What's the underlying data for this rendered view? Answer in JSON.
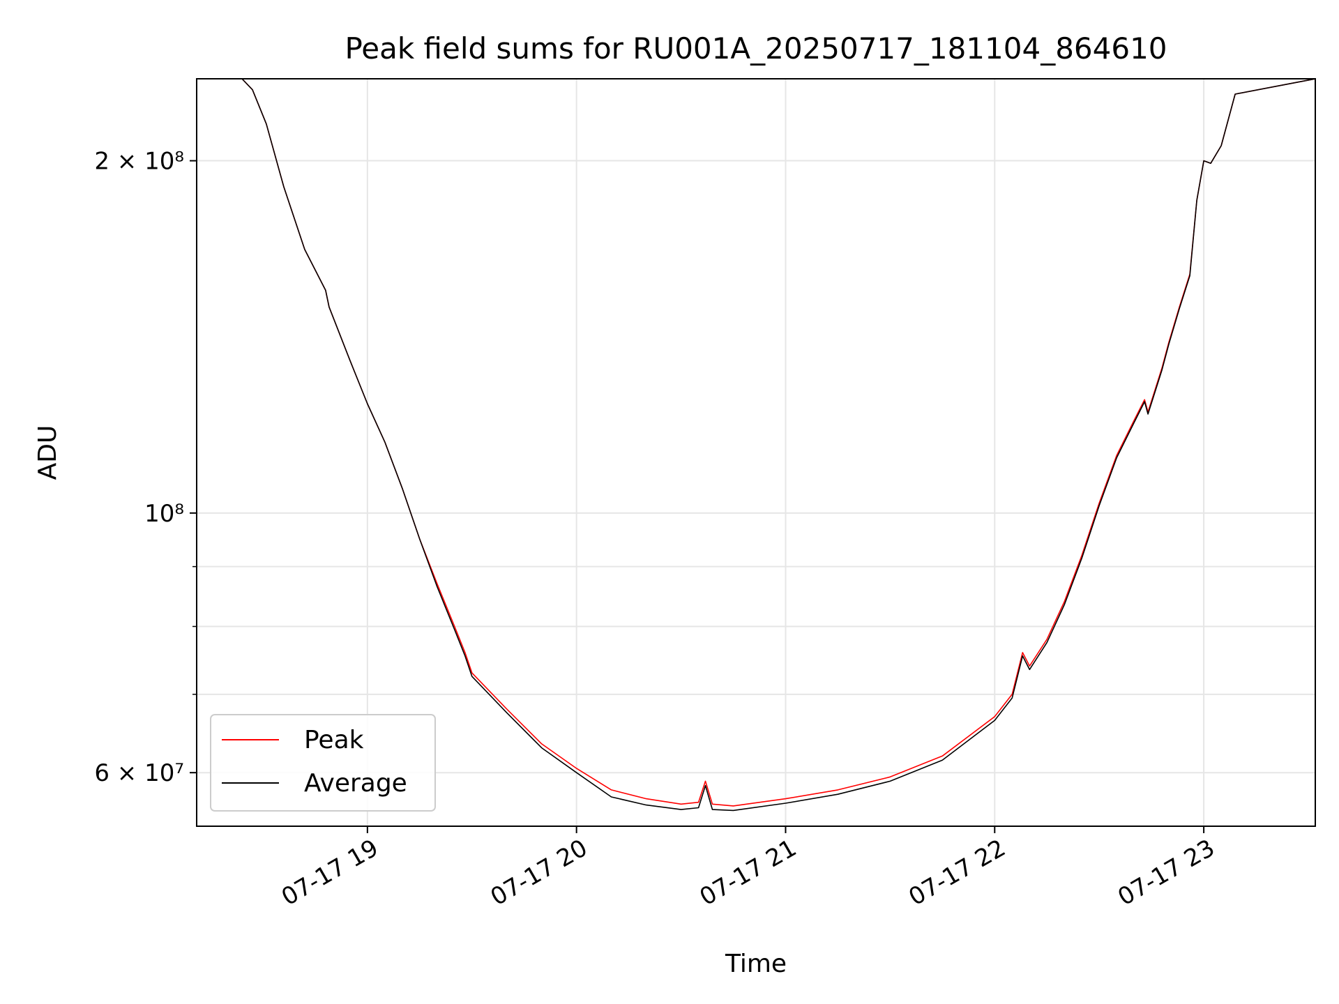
{
  "chart_data": {
    "type": "line",
    "title": "Peak field sums for RU001A_20250717_181104_864610",
    "xlabel": "Time",
    "ylabel": "ADU",
    "y_scale": "log",
    "grid": true,
    "legend_position": "lower-left",
    "xlim": [
      "2025-07-17 18:11",
      "2025-07-17 23:32"
    ],
    "ylim": [
      54000000,
      235000000
    ],
    "x_ticks": [
      {
        "time": "2025-07-17 19:00",
        "label": "07-17 19"
      },
      {
        "time": "2025-07-17 20:00",
        "label": "07-17 20"
      },
      {
        "time": "2025-07-17 21:00",
        "label": "07-17 21"
      },
      {
        "time": "2025-07-17 22:00",
        "label": "07-17 22"
      },
      {
        "time": "2025-07-17 23:00",
        "label": "07-17 23"
      }
    ],
    "y_ticks": [
      {
        "value": 200000000,
        "label": "2 × 10⁸"
      },
      {
        "value": 100000000,
        "label": "10⁸"
      },
      {
        "value": 60000000,
        "label": "6 × 10⁷"
      }
    ],
    "y_minor_ticks": [
      70000000,
      80000000,
      90000000
    ],
    "series": [
      {
        "name": "Peak",
        "color": "#ff0000",
        "x": [
          "2025-07-17 18:11",
          "2025-07-17 18:24",
          "2025-07-17 18:27",
          "2025-07-17 18:31",
          "2025-07-17 18:36",
          "2025-07-17 18:42",
          "2025-07-17 18:48",
          "2025-07-17 18:49",
          "2025-07-17 18:55",
          "2025-07-17 19:00",
          "2025-07-17 19:05",
          "2025-07-17 19:10",
          "2025-07-17 19:15",
          "2025-07-17 19:20",
          "2025-07-17 19:25",
          "2025-07-17 19:28",
          "2025-07-17 19:30",
          "2025-07-17 19:40",
          "2025-07-17 19:50",
          "2025-07-17 20:00",
          "2025-07-17 20:10",
          "2025-07-17 20:20",
          "2025-07-17 20:30",
          "2025-07-17 20:35",
          "2025-07-17 20:37",
          "2025-07-17 20:39",
          "2025-07-17 20:45",
          "2025-07-17 21:00",
          "2025-07-17 21:15",
          "2025-07-17 21:30",
          "2025-07-17 21:45",
          "2025-07-17 22:00",
          "2025-07-17 22:05",
          "2025-07-17 22:08",
          "2025-07-17 22:10",
          "2025-07-17 22:15",
          "2025-07-17 22:20",
          "2025-07-17 22:25",
          "2025-07-17 22:30",
          "2025-07-17 22:35",
          "2025-07-17 22:40",
          "2025-07-17 22:43",
          "2025-07-17 22:44",
          "2025-07-17 22:48",
          "2025-07-17 22:50",
          "2025-07-17 22:53",
          "2025-07-17 22:56",
          "2025-07-17 22:58",
          "2025-07-17 23:00",
          "2025-07-17 23:02",
          "2025-07-17 23:05",
          "2025-07-17 23:09",
          "2025-07-17 23:32"
        ],
        "y": [
          235000000,
          235000000,
          230000000,
          215000000,
          190000000,
          168000000,
          155000000,
          150000000,
          135000000,
          124000000,
          115000000,
          105000000,
          95000000,
          87000000,
          80000000,
          76000000,
          73000000,
          68000000,
          63500000,
          60500000,
          58000000,
          57000000,
          56400000,
          56600000,
          59000000,
          56400000,
          56200000,
          57000000,
          58000000,
          59500000,
          62000000,
          67000000,
          70000000,
          76000000,
          74000000,
          78000000,
          84000000,
          92000000,
          102000000,
          112000000,
          120000000,
          125000000,
          122000000,
          133000000,
          140000000,
          150000000,
          160000000,
          185000000,
          200000000,
          199000000,
          206000000,
          228000000,
          235000000
        ]
      },
      {
        "name": "Average",
        "color": "#000000",
        "x": [
          "2025-07-17 18:11",
          "2025-07-17 18:24",
          "2025-07-17 18:27",
          "2025-07-17 18:31",
          "2025-07-17 18:36",
          "2025-07-17 18:42",
          "2025-07-17 18:48",
          "2025-07-17 18:49",
          "2025-07-17 18:55",
          "2025-07-17 19:00",
          "2025-07-17 19:05",
          "2025-07-17 19:10",
          "2025-07-17 19:15",
          "2025-07-17 19:20",
          "2025-07-17 19:25",
          "2025-07-17 19:28",
          "2025-07-17 19:30",
          "2025-07-17 19:40",
          "2025-07-17 19:50",
          "2025-07-17 20:00",
          "2025-07-17 20:10",
          "2025-07-17 20:20",
          "2025-07-17 20:30",
          "2025-07-17 20:35",
          "2025-07-17 20:37",
          "2025-07-17 20:39",
          "2025-07-17 20:45",
          "2025-07-17 21:00",
          "2025-07-17 21:15",
          "2025-07-17 21:30",
          "2025-07-17 21:45",
          "2025-07-17 22:00",
          "2025-07-17 22:05",
          "2025-07-17 22:08",
          "2025-07-17 22:10",
          "2025-07-17 22:15",
          "2025-07-17 22:20",
          "2025-07-17 22:25",
          "2025-07-17 22:30",
          "2025-07-17 22:35",
          "2025-07-17 22:40",
          "2025-07-17 22:43",
          "2025-07-17 22:44",
          "2025-07-17 22:48",
          "2025-07-17 22:50",
          "2025-07-17 22:53",
          "2025-07-17 22:56",
          "2025-07-17 22:58",
          "2025-07-17 23:00",
          "2025-07-17 23:02",
          "2025-07-17 23:05",
          "2025-07-17 23:09",
          "2025-07-17 23:32"
        ],
        "y": [
          235000000,
          235000000,
          230000000,
          215000000,
          190000000,
          168000000,
          155000000,
          150000000,
          135000000,
          124000000,
          115000000,
          105000000,
          95000000,
          86500000,
          79500000,
          75500000,
          72500000,
          67500000,
          63000000,
          60000000,
          57200000,
          56300000,
          55800000,
          56000000,
          58500000,
          55800000,
          55700000,
          56500000,
          57500000,
          59000000,
          61500000,
          66500000,
          69500000,
          75500000,
          73500000,
          77500000,
          83500000,
          91500000,
          101500000,
          111500000,
          119500000,
          124500000,
          121500000,
          132500000,
          139500000,
          149500000,
          159500000,
          185000000,
          200000000,
          199000000,
          206000000,
          228000000,
          235000000
        ]
      }
    ]
  }
}
